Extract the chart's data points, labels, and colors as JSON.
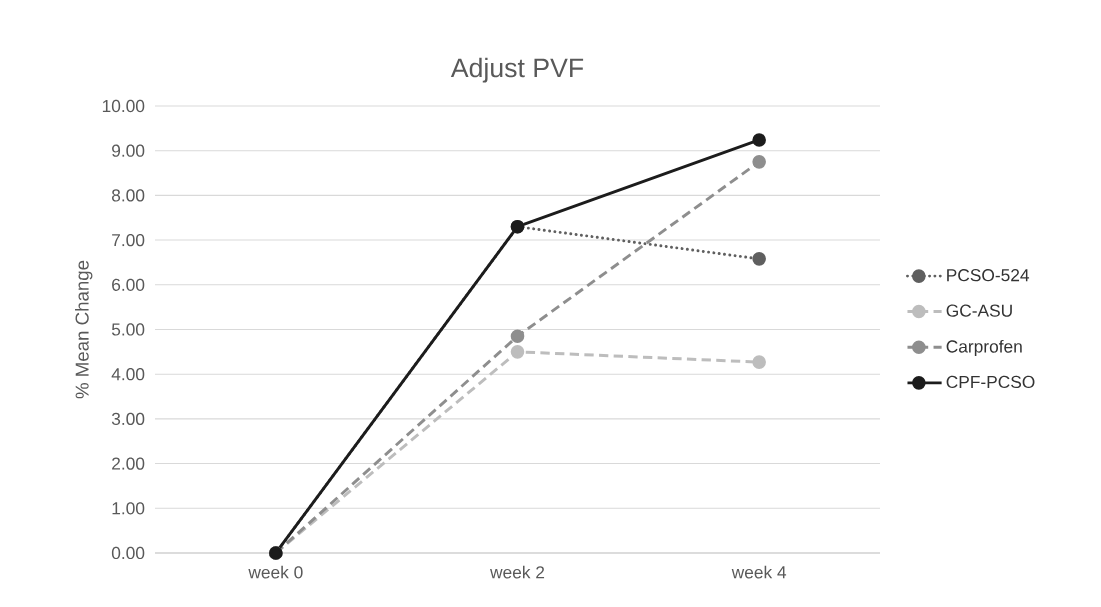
{
  "chart_data": {
    "type": "line",
    "title": "Adjust PVF",
    "ylabel": "% Mean Change",
    "categories": [
      "week 0",
      "week 2",
      "week 4"
    ],
    "series": [
      {
        "name": "PCSO-524",
        "color": "#5f5f5f",
        "line_style": "dotted",
        "values": [
          0,
          7.3,
          6.58
        ]
      },
      {
        "name": "GC-ASU",
        "color": "#bdbdbd",
        "line_style": "dashed",
        "values": [
          0,
          4.5,
          4.27
        ]
      },
      {
        "name": "Carprofen",
        "color": "#8e8e8e",
        "line_style": "dashed",
        "values": [
          0,
          4.85,
          8.75
        ]
      },
      {
        "name": "CPF-PCSO",
        "color": "#1c1c1c",
        "line_style": "solid",
        "values": [
          0,
          7.3,
          9.24
        ]
      }
    ],
    "ylim": [
      0,
      10
    ],
    "yticks": [
      {
        "value": 0,
        "label": "0.00"
      },
      {
        "value": 1,
        "label": "1.00"
      },
      {
        "value": 2,
        "label": "2.00"
      },
      {
        "value": 3,
        "label": "3.00"
      },
      {
        "value": 4,
        "label": "4.00"
      },
      {
        "value": 5,
        "label": "5.00"
      },
      {
        "value": 6,
        "label": "6.00"
      },
      {
        "value": 7,
        "label": "7.00"
      },
      {
        "value": 8,
        "label": "8.00"
      },
      {
        "value": 9,
        "label": "9.00"
      },
      {
        "value": 10,
        "label": "10.00"
      }
    ],
    "grid": "y",
    "legend": "right",
    "marker": "circle"
  }
}
